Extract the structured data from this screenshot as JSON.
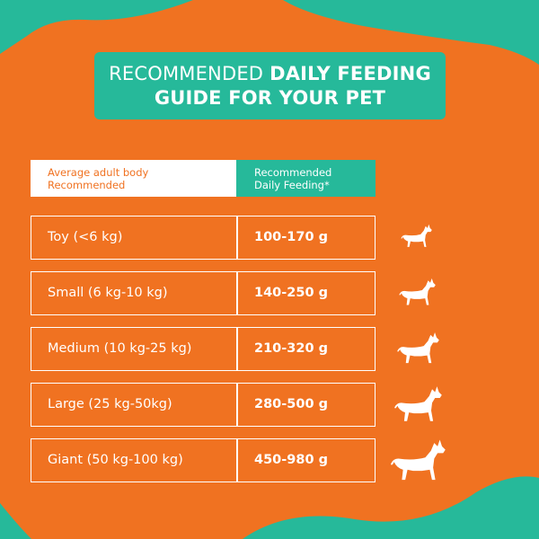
{
  "title": {
    "light": "RECOMMENDED",
    "bold_1": "DAILY FEEDING",
    "bold_2": "GUIDE FOR YOUR PET"
  },
  "table": {
    "header_left_1": "Average adult body",
    "header_left_2": "Recommended",
    "header_right_1": "Recommended",
    "header_right_2": "Daily Feeding*",
    "rows": [
      {
        "size": "Toy (<6 kg)",
        "amount": "100-170 g"
      },
      {
        "size": "Small (6 kg-10 kg)",
        "amount": "140-250 g"
      },
      {
        "size": "Medium (10 kg-25 kg)",
        "amount": "210-320 g"
      },
      {
        "size": "Large (25 kg-50kg)",
        "amount": "280-500 g"
      },
      {
        "size": "Giant (50 kg-100 kg)",
        "amount": "450-980 g"
      }
    ]
  },
  "icons": [
    "dog-toy-icon",
    "dog-small-icon",
    "dog-medium-icon",
    "dog-large-icon",
    "dog-giant-icon"
  ],
  "colors": {
    "background": "#f07221",
    "accent": "#26b99a",
    "text_light": "#ffffff"
  }
}
